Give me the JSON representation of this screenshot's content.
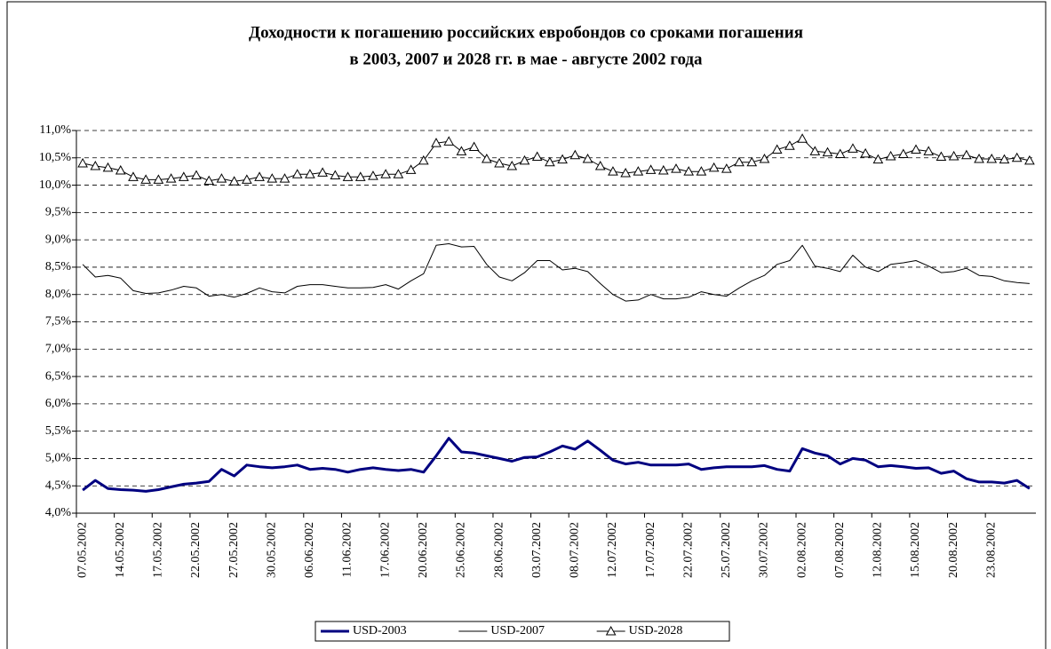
{
  "chart_data": {
    "type": "line",
    "title": "Доходности к погашению российских евробондов со сроками погашения",
    "subtitle": "в 2003, 2007 и 2028 гг. в мае - августе 2002 года",
    "categories": [
      "07.05.2002",
      null,
      null,
      "14.05.2002",
      null,
      null,
      "17.05.2002",
      null,
      null,
      "22.05.2002",
      null,
      null,
      "27.05.2002",
      null,
      null,
      "30.05.2002",
      null,
      null,
      "06.06.2002",
      null,
      null,
      "11.06.2002",
      null,
      null,
      "17.06.2002",
      null,
      null,
      "20.06.2002",
      null,
      null,
      "25.06.2002",
      null,
      null,
      "28.06.2002",
      null,
      null,
      "03.07.2002",
      null,
      null,
      "08.07.2002",
      null,
      null,
      "12.07.2002",
      null,
      null,
      "17.07.2002",
      null,
      null,
      "22.07.2002",
      null,
      null,
      "25.07.2002",
      null,
      null,
      "30.07.2002",
      null,
      null,
      "02.08.2002",
      null,
      null,
      "07.08.2002",
      null,
      null,
      "12.08.2002",
      null,
      null,
      "15.08.2002",
      null,
      null,
      "20.08.2002",
      null,
      null,
      "23.08.2002",
      null,
      null,
      null
    ],
    "series": [
      {
        "name": "USD-2003",
        "color": "#000080",
        "marker": "none",
        "values": [
          4.42,
          4.6,
          4.45,
          4.43,
          4.42,
          4.4,
          4.43,
          4.48,
          4.53,
          4.55,
          4.58,
          4.8,
          4.68,
          4.88,
          4.85,
          4.83,
          4.85,
          4.88,
          4.8,
          4.82,
          4.8,
          4.75,
          4.8,
          4.83,
          4.8,
          4.78,
          4.8,
          4.75,
          5.05,
          5.37,
          5.12,
          5.1,
          5.05,
          5.0,
          4.95,
          5.02,
          5.03,
          5.12,
          5.23,
          5.17,
          5.32,
          5.15,
          4.97,
          4.9,
          4.93,
          4.88,
          4.88,
          4.88,
          4.9,
          4.8,
          4.83,
          4.85,
          4.85,
          4.85,
          4.87,
          4.8,
          4.77,
          5.18,
          5.1,
          5.05,
          4.9,
          5.0,
          4.97,
          4.85,
          4.87,
          4.85,
          4.82,
          4.83,
          4.73,
          4.77,
          4.63,
          4.57,
          4.57,
          4.55,
          4.6,
          4.45
        ]
      },
      {
        "name": "USD-2007",
        "color": "#000000",
        "marker": "none",
        "values": [
          8.55,
          8.32,
          8.35,
          8.3,
          8.07,
          8.02,
          8.03,
          8.08,
          8.15,
          8.12,
          7.97,
          8.0,
          7.95,
          8.02,
          8.12,
          8.05,
          8.03,
          8.15,
          8.18,
          8.18,
          8.15,
          8.12,
          8.12,
          8.13,
          8.18,
          8.1,
          8.25,
          8.38,
          8.9,
          8.93,
          8.87,
          8.88,
          8.55,
          8.32,
          8.25,
          8.4,
          8.62,
          8.62,
          8.45,
          8.48,
          8.42,
          8.2,
          8.0,
          7.88,
          7.9,
          8.0,
          7.92,
          7.92,
          7.95,
          8.05,
          8.0,
          7.97,
          8.12,
          8.25,
          8.35,
          8.55,
          8.62,
          8.9,
          8.52,
          8.48,
          8.42,
          8.72,
          8.5,
          8.42,
          8.55,
          8.58,
          8.62,
          8.52,
          8.4,
          8.42,
          8.48,
          8.35,
          8.33,
          8.25,
          8.22,
          8.2
        ]
      },
      {
        "name": "USD-2028",
        "color": "#000000",
        "marker": "triangle",
        "values": [
          10.4,
          10.35,
          10.32,
          10.27,
          10.15,
          10.1,
          10.1,
          10.12,
          10.15,
          10.18,
          10.08,
          10.12,
          10.07,
          10.1,
          10.15,
          10.12,
          10.12,
          10.2,
          10.2,
          10.23,
          10.18,
          10.15,
          10.15,
          10.17,
          10.2,
          10.2,
          10.28,
          10.45,
          10.77,
          10.8,
          10.62,
          10.7,
          10.48,
          10.4,
          10.35,
          10.45,
          10.52,
          10.42,
          10.47,
          10.55,
          10.48,
          10.35,
          10.25,
          10.22,
          10.25,
          10.28,
          10.27,
          10.3,
          10.25,
          10.25,
          10.32,
          10.3,
          10.42,
          10.42,
          10.48,
          10.65,
          10.72,
          10.85,
          10.62,
          10.6,
          10.57,
          10.67,
          10.58,
          10.47,
          10.53,
          10.57,
          10.65,
          10.62,
          10.52,
          10.53,
          10.55,
          10.48,
          10.48,
          10.47,
          10.5,
          10.45
        ]
      }
    ],
    "ylim": [
      4,
      11
    ],
    "yticks": [
      {
        "value": 4,
        "label": "4,0%"
      },
      {
        "value": 4.5,
        "label": "4,5%"
      },
      {
        "value": 5,
        "label": "5,0%"
      },
      {
        "value": 5.5,
        "label": "5,5%"
      },
      {
        "value": 6,
        "label": "6,0%"
      },
      {
        "value": 6.5,
        "label": "6,5%"
      },
      {
        "value": 7,
        "label": "7,0%"
      },
      {
        "value": 7.5,
        "label": "7,5%"
      },
      {
        "value": 8,
        "label": "8,0%"
      },
      {
        "value": 8.5,
        "label": "8,5%"
      },
      {
        "value": 9,
        "label": "9,0%"
      },
      {
        "value": 9.5,
        "label": "9,5%"
      },
      {
        "value": 10,
        "label": "10,0%"
      },
      {
        "value": 10.5,
        "label": "10,5%"
      },
      {
        "value": 11,
        "label": "11,0%"
      }
    ],
    "grid": true,
    "legend": "bottom"
  }
}
